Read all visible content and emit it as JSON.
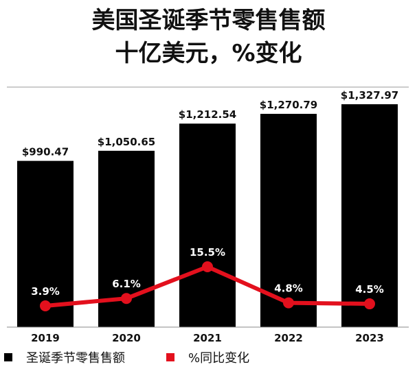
{
  "title_line1": "美国圣诞季节零售售额",
  "title_line2": "十亿美元，%变化",
  "colors": {
    "bar": "#000000",
    "line": "#e3101d",
    "text": "#111111"
  },
  "legend": {
    "bar_label": "圣诞季节零售售额",
    "line_label": "%同比变化"
  },
  "chart_data": {
    "type": "bar",
    "categories": [
      "2019",
      "2020",
      "2021",
      "2022",
      "2023"
    ],
    "series": [
      {
        "name": "圣诞季节零售售额",
        "type": "bar",
        "values": [
          990.47,
          1050.65,
          1212.54,
          1270.79,
          1327.97
        ],
        "labels": [
          "$990.47",
          "$1,050.65",
          "$1,212.54",
          "$1,270.79",
          "$1,327.97"
        ]
      },
      {
        "name": "%同比变化",
        "type": "line",
        "values": [
          3.9,
          6.1,
          15.5,
          4.8,
          4.5
        ],
        "labels": [
          "3.9%",
          "6.1%",
          "15.5%",
          "4.8%",
          "4.5%"
        ]
      }
    ],
    "legend_position": "bottom-left",
    "grid": false
  }
}
